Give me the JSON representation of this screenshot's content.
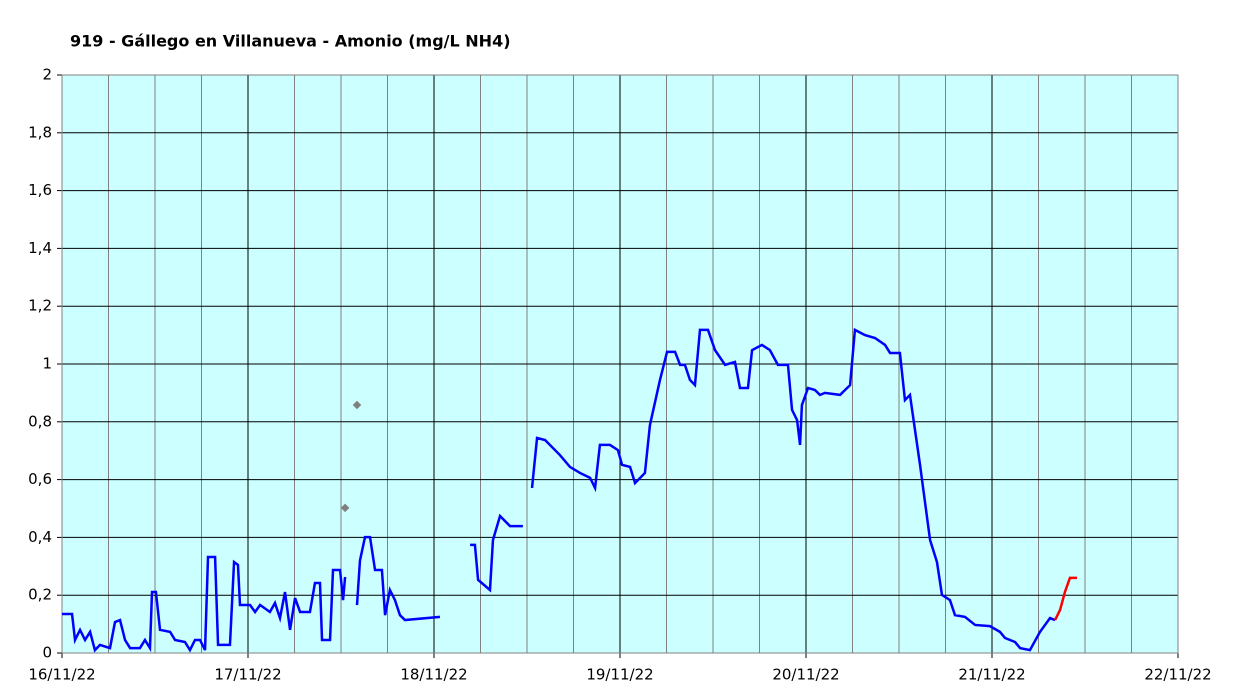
{
  "chart_data": {
    "type": "line",
    "title": "919 - Gállego en Villanueva - Amonio (mg/L NH4)",
    "xlim": [
      0,
      6
    ],
    "xticks": [
      {
        "value": 0,
        "label": "16/11/22"
      },
      {
        "value": 1,
        "label": "17/11/22"
      },
      {
        "value": 2,
        "label": "18/11/22"
      },
      {
        "value": 3,
        "label": "19/11/22"
      },
      {
        "value": 4,
        "label": "20/11/22"
      },
      {
        "value": 5,
        "label": "21/11/22"
      },
      {
        "value": 6,
        "label": "22/11/22"
      }
    ],
    "ylim": [
      0,
      2
    ],
    "yticks": [
      0,
      {
        "value": 0.2,
        "label": "0,2"
      },
      {
        "value": 0.4,
        "label": "0,4"
      },
      {
        "value": 0.6,
        "label": "0,6"
      },
      {
        "value": 0.8,
        "label": "0,8"
      },
      1,
      {
        "value": 1.2,
        "label": "1,2"
      },
      {
        "value": 1.4,
        "label": "1,4"
      },
      {
        "value": 1.6,
        "label": "1,6"
      },
      {
        "value": 1.8,
        "label": "1,8"
      },
      2
    ],
    "grid": true,
    "series": [
      {
        "color": "#0000ff",
        "x": [
          0,
          0.054,
          0.07,
          0.097,
          0.124,
          0.151,
          0.177,
          0.204,
          0.258,
          0.285,
          0.312,
          0.339,
          0.366,
          0.419,
          0.446,
          0.473,
          0.484,
          0.505,
          0.527,
          0.581,
          0.608,
          0.661,
          0.688,
          0.715,
          0.742,
          0.769,
          0.785,
          0.823,
          0.839,
          0.903,
          0.925,
          0.946,
          0.957,
          1.011,
          1.038,
          1.065,
          1.118,
          1.145,
          1.172,
          1.199,
          1.226,
          1.253,
          1.28,
          1.333,
          1.36,
          1.387,
          1.398,
          1.441,
          1.457,
          1.495,
          1.511,
          1.522,
          null,
          1.586,
          1.602,
          1.629,
          1.656,
          1.683,
          1.72,
          1.737,
          1.763,
          1.79,
          1.817,
          1.844,
          2.032,
          null,
          2.194,
          2.22,
          2.237,
          2.301,
          2.317,
          2.355,
          2.409,
          2.478,
          null,
          2.527,
          2.554,
          2.597,
          2.677,
          2.731,
          2.785,
          2.839,
          2.866,
          2.892,
          2.946,
          2.989,
          3.011,
          3.054,
          3.081,
          3.134,
          3.161,
          3.215,
          3.253,
          3.296,
          3.323,
          3.349,
          3.376,
          3.403,
          3.43,
          3.473,
          3.511,
          3.565,
          3.618,
          3.645,
          3.688,
          3.71,
          3.763,
          3.806,
          3.849,
          3.903,
          3.925,
          3.952,
          3.968,
          3.978,
          4.011,
          4.048,
          4.075,
          4.102,
          4.183,
          4.237,
          4.263,
          4.317,
          4.371,
          4.425,
          4.452,
          4.505,
          4.532,
          4.559,
          4.586,
          4.613,
          4.667,
          4.704,
          4.731,
          4.774,
          4.801,
          4.855,
          4.909,
          4.989,
          5.043,
          5.07,
          5.124,
          5.151,
          5.204,
          5.258,
          5.312,
          5.339
        ],
        "values": [
          0.135,
          0.135,
          0.045,
          0.08,
          0.045,
          0.073,
          0.01,
          0.028,
          0.017,
          0.107,
          0.114,
          0.045,
          0.017,
          0.017,
          0.045,
          0.017,
          0.211,
          0.211,
          0.08,
          0.073,
          0.045,
          0.038,
          0.01,
          0.045,
          0.045,
          0.01,
          0.332,
          0.332,
          0.028,
          0.028,
          0.315,
          0.305,
          0.166,
          0.166,
          0.142,
          0.166,
          0.142,
          0.173,
          0.121,
          0.211,
          0.08,
          0.19,
          0.142,
          0.142,
          0.242,
          0.242,
          0.045,
          0.045,
          0.287,
          0.287,
          0.183,
          0.263,
          null,
          0.166,
          0.32,
          0.401,
          0.401,
          0.287,
          0.287,
          0.131,
          0.218,
          0.183,
          0.131,
          0.114,
          0.125,
          null,
          0.374,
          0.374,
          0.253,
          0.218,
          0.391,
          0.474,
          0.439,
          0.439,
          null,
          0.571,
          0.744,
          0.737,
          0.685,
          0.644,
          0.623,
          0.606,
          0.571,
          0.72,
          0.72,
          0.702,
          0.651,
          0.644,
          0.588,
          0.623,
          0.789,
          0.945,
          1.042,
          1.042,
          0.997,
          0.997,
          0.945,
          0.927,
          1.118,
          1.118,
          1.048,
          0.997,
          1.007,
          0.917,
          0.917,
          1.048,
          1.066,
          1.048,
          0.997,
          0.997,
          0.841,
          0.806,
          0.72,
          0.858,
          0.917,
          0.91,
          0.893,
          0.9,
          0.893,
          0.927,
          1.118,
          1.1,
          1.09,
          1.066,
          1.038,
          1.038,
          0.875,
          0.893,
          0.772,
          0.651,
          0.391,
          0.315,
          0.201,
          0.183,
          0.131,
          0.125,
          0.097,
          0.093,
          0.073,
          0.052,
          0.038,
          0.017,
          0.01,
          0.073,
          0.121,
          0.114
        ]
      },
      {
        "color": "#ff0000",
        "x": [
          5.339,
          5.366,
          5.392,
          5.419,
          5.457
        ],
        "values": [
          0.114,
          0.149,
          0.211,
          0.26,
          0.26
        ]
      },
      {
        "color": "#808080",
        "type": "scatter",
        "x": [
          1.522,
          1.586
        ],
        "values": [
          0.502,
          0.858
        ]
      }
    ]
  }
}
